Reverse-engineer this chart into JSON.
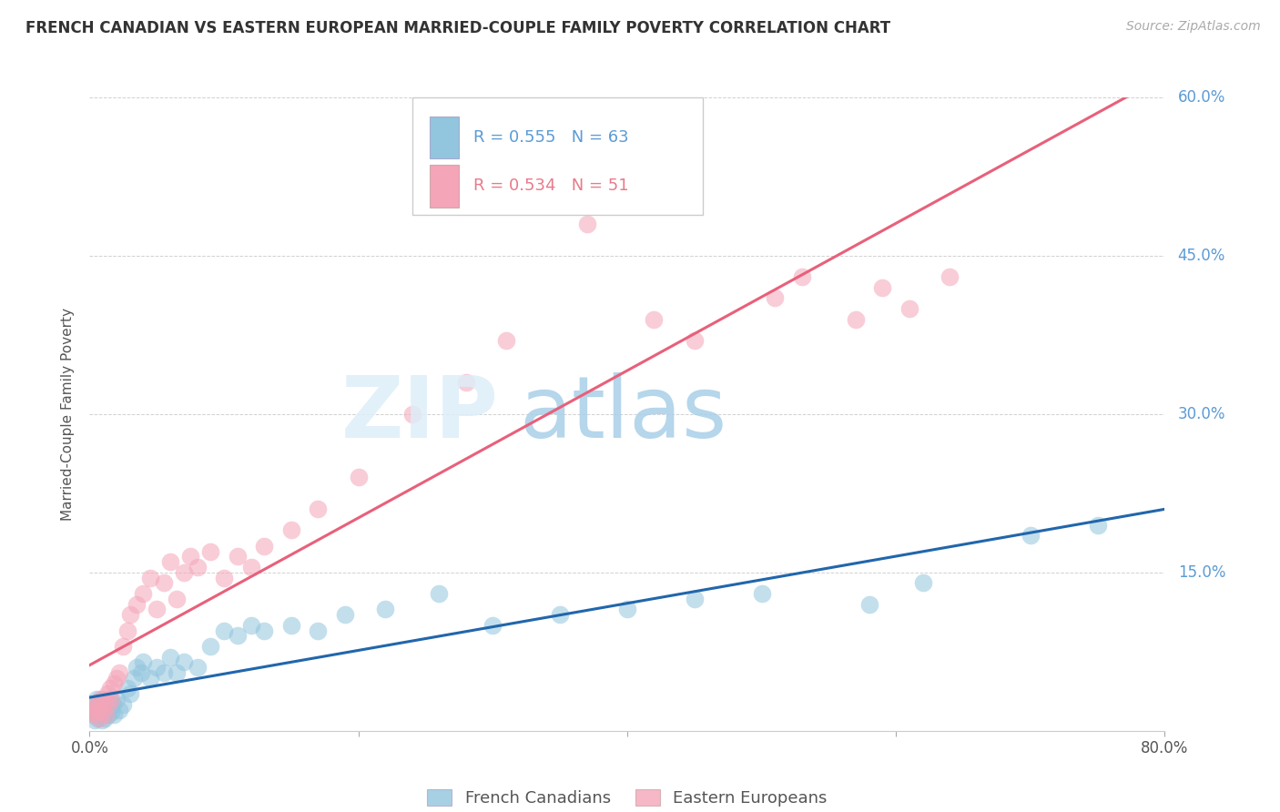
{
  "title": "FRENCH CANADIAN VS EASTERN EUROPEAN MARRIED-COUPLE FAMILY POVERTY CORRELATION CHART",
  "source": "Source: ZipAtlas.com",
  "ylabel": "Married-Couple Family Poverty",
  "xlim": [
    0.0,
    0.8
  ],
  "ylim": [
    0.0,
    0.6
  ],
  "blue_R": "R = 0.555",
  "blue_N": "N = 63",
  "pink_R": "R = 0.534",
  "pink_N": "N = 51",
  "blue_color": "#92c5de",
  "pink_color": "#f4a5b8",
  "blue_line_color": "#2166ac",
  "pink_line_color": "#e8607a",
  "legend_blue_label": "French Canadians",
  "legend_pink_label": "Eastern Europeans",
  "french_canadian_x": [
    0.002,
    0.003,
    0.004,
    0.004,
    0.005,
    0.005,
    0.006,
    0.006,
    0.007,
    0.007,
    0.008,
    0.008,
    0.009,
    0.009,
    0.01,
    0.01,
    0.011,
    0.011,
    0.012,
    0.012,
    0.013,
    0.013,
    0.014,
    0.015,
    0.015,
    0.016,
    0.017,
    0.018,
    0.02,
    0.022,
    0.025,
    0.028,
    0.03,
    0.033,
    0.035,
    0.038,
    0.04,
    0.045,
    0.05,
    0.055,
    0.06,
    0.065,
    0.07,
    0.08,
    0.09,
    0.1,
    0.11,
    0.12,
    0.13,
    0.15,
    0.17,
    0.19,
    0.22,
    0.26,
    0.3,
    0.35,
    0.4,
    0.45,
    0.5,
    0.58,
    0.62,
    0.7,
    0.75
  ],
  "french_canadian_y": [
    0.02,
    0.015,
    0.025,
    0.01,
    0.018,
    0.03,
    0.012,
    0.022,
    0.015,
    0.028,
    0.02,
    0.025,
    0.01,
    0.018,
    0.022,
    0.03,
    0.015,
    0.012,
    0.025,
    0.018,
    0.02,
    0.028,
    0.015,
    0.022,
    0.03,
    0.018,
    0.025,
    0.015,
    0.03,
    0.02,
    0.025,
    0.04,
    0.035,
    0.05,
    0.06,
    0.055,
    0.065,
    0.05,
    0.06,
    0.055,
    0.07,
    0.055,
    0.065,
    0.06,
    0.08,
    0.095,
    0.09,
    0.1,
    0.095,
    0.1,
    0.095,
    0.11,
    0.115,
    0.13,
    0.1,
    0.11,
    0.115,
    0.125,
    0.13,
    0.12,
    0.14,
    0.185,
    0.195
  ],
  "eastern_european_x": [
    0.002,
    0.003,
    0.004,
    0.005,
    0.006,
    0.007,
    0.008,
    0.009,
    0.01,
    0.011,
    0.012,
    0.013,
    0.014,
    0.015,
    0.016,
    0.018,
    0.02,
    0.022,
    0.025,
    0.028,
    0.03,
    0.035,
    0.04,
    0.045,
    0.05,
    0.055,
    0.06,
    0.065,
    0.07,
    0.075,
    0.08,
    0.09,
    0.1,
    0.11,
    0.12,
    0.13,
    0.15,
    0.17,
    0.2,
    0.24,
    0.28,
    0.31,
    0.37,
    0.42,
    0.45,
    0.51,
    0.53,
    0.57,
    0.59,
    0.61,
    0.64
  ],
  "eastern_european_y": [
    0.018,
    0.022,
    0.015,
    0.02,
    0.025,
    0.012,
    0.03,
    0.018,
    0.022,
    0.028,
    0.015,
    0.035,
    0.025,
    0.04,
    0.03,
    0.045,
    0.05,
    0.055,
    0.08,
    0.095,
    0.11,
    0.12,
    0.13,
    0.145,
    0.115,
    0.14,
    0.16,
    0.125,
    0.15,
    0.165,
    0.155,
    0.17,
    0.145,
    0.165,
    0.155,
    0.175,
    0.19,
    0.21,
    0.24,
    0.3,
    0.33,
    0.37,
    0.48,
    0.39,
    0.37,
    0.41,
    0.43,
    0.39,
    0.42,
    0.4,
    0.43
  ]
}
